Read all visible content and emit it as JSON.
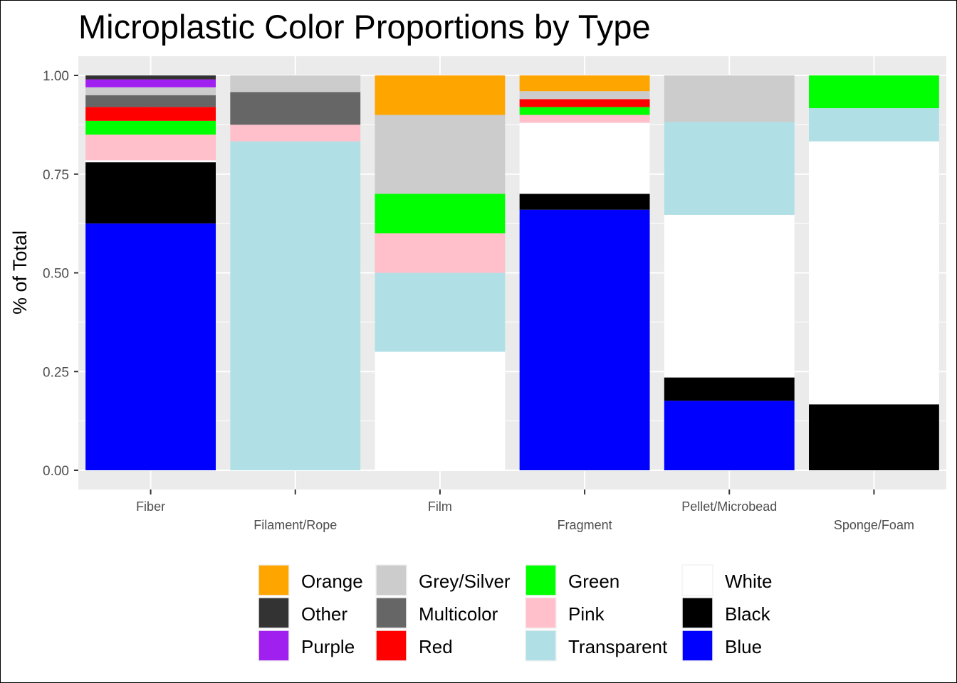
{
  "chart_data": {
    "type": "bar",
    "stacked": true,
    "title": "Microplastic Color Proportions by Type",
    "xlabel": "",
    "ylabel": "% of Total",
    "ylim": [
      0,
      1
    ],
    "yticks": [
      "0.00",
      "0.25",
      "0.50",
      "0.75",
      "1.00"
    ],
    "ytick_values": [
      0,
      0.25,
      0.5,
      0.75,
      1
    ],
    "grid": true,
    "legend_position": "bottom",
    "categories": [
      "Fiber",
      "Filament/Rope",
      "Film",
      "Fragment",
      "Pellet/Microbead",
      "Sponge/Foam"
    ],
    "stack_order_bottom_to_top": [
      "Blue",
      "Black",
      "White",
      "Transparent",
      "Pink",
      "Green",
      "Red",
      "Multicolor",
      "Grey/Silver",
      "Purple",
      "Other",
      "Orange"
    ],
    "series": [
      {
        "name": "Orange",
        "color": "#FFA500",
        "values": [
          0,
          0,
          0.1,
          0.04,
          0,
          0
        ]
      },
      {
        "name": "Other",
        "color": "#333333",
        "values": [
          0.01,
          0,
          0,
          0,
          0,
          0
        ]
      },
      {
        "name": "Purple",
        "color": "#A020F0",
        "values": [
          0.02,
          0,
          0,
          0,
          0,
          0
        ]
      },
      {
        "name": "Grey/Silver",
        "color": "#CCCCCC",
        "values": [
          0.02,
          0.042,
          0.2,
          0.02,
          0.118,
          0
        ]
      },
      {
        "name": "Multicolor",
        "color": "#666666",
        "values": [
          0.03,
          0.083,
          0,
          0,
          0,
          0
        ]
      },
      {
        "name": "Red",
        "color": "#FF0000",
        "values": [
          0.035,
          0,
          0,
          0.02,
          0,
          0
        ]
      },
      {
        "name": "Green",
        "color": "#00FF00",
        "values": [
          0.035,
          0,
          0.1,
          0.02,
          0,
          0.083
        ]
      },
      {
        "name": "Pink",
        "color": "#FFC0CB",
        "values": [
          0.065,
          0.042,
          0.1,
          0.02,
          0,
          0
        ]
      },
      {
        "name": "Transparent",
        "color": "#B0E0E6",
        "values": [
          0,
          0.833,
          0.2,
          0,
          0.235,
          0.084
        ]
      },
      {
        "name": "White",
        "color": "#FFFFFF",
        "values": [
          0.005,
          0,
          0.3,
          0.18,
          0.412,
          0.666
        ]
      },
      {
        "name": "Black",
        "color": "#000000",
        "values": [
          0.155,
          0,
          0,
          0.04,
          0.059,
          0.167
        ]
      },
      {
        "name": "Blue",
        "color": "#0000FF",
        "values": [
          0.625,
          0,
          0,
          0.66,
          0.176,
          0
        ]
      }
    ]
  }
}
